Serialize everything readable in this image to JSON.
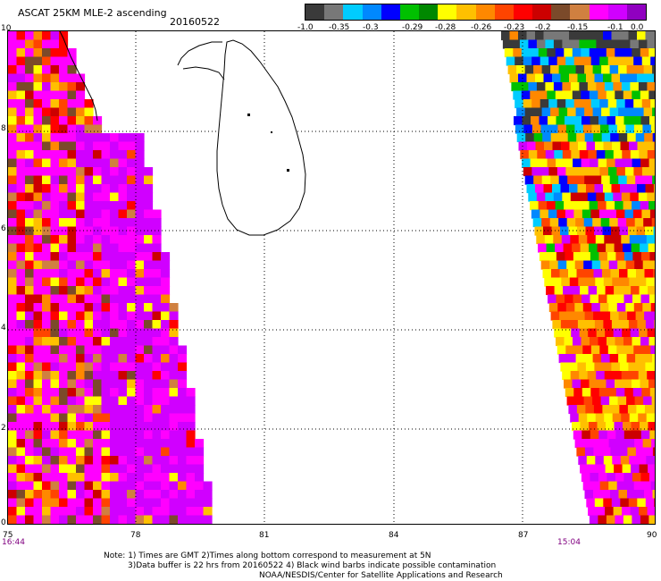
{
  "header": {
    "title": "ASCAT 25KM MLE-2 ascending",
    "date": "20160522"
  },
  "legend": {
    "colors": [
      "#3a3a3a",
      "#787878",
      "#00ccff",
      "#0088ff",
      "#0000ff",
      "#00c000",
      "#008800",
      "#ffff00",
      "#ffc000",
      "#ff8800",
      "#ff4400",
      "#ff0000",
      "#cc0000",
      "#7b4a2a",
      "#d08040",
      "#ff00ff",
      "#d000ff",
      "#9000c0"
    ],
    "labels": [
      "-1.0",
      "-0.35",
      "-0.3",
      "-0.29",
      "-0.28",
      "-0.26",
      "-0.23",
      "-0.2",
      "-0.15",
      "-0.1",
      "0.0"
    ]
  },
  "axes": {
    "longitudes": [
      "75",
      "78",
      "81",
      "84",
      "87",
      "90"
    ],
    "latitudes": [
      "10",
      "8",
      "6",
      "4",
      "2",
      "0"
    ]
  },
  "times": {
    "left": "16:44",
    "right": "15:04"
  },
  "notes": {
    "line1": "Note: 1) Times are GMT 2)Times along bottom correspond to measurement at 5N",
    "line2": "3)Data buffer is 22 hrs from 20160522 4) Black wind barbs indicate possible contamination",
    "line3": "NOAA/NESDIS/Center for Satellite Applications and Research"
  },
  "map": {
    "landmass": "Sri Lanka",
    "west_swath_palette": [
      "#ff00ff",
      "#d000ff",
      "#ff0000",
      "#ff4400",
      "#cc0000",
      "#7b4a2a",
      "#ff8800",
      "#ffc000",
      "#ffff00",
      "#d08040"
    ],
    "east_swath_palette_north": [
      "#00ccff",
      "#0088ff",
      "#0000ff",
      "#00c000",
      "#ffff00",
      "#ffc000",
      "#ff8800",
      "#3a3a3a"
    ],
    "east_swath_palette_south": [
      "#ff0000",
      "#ff4400",
      "#ffc000",
      "#ffff00",
      "#ff8800",
      "#d000ff",
      "#ff00ff",
      "#cc0000"
    ]
  }
}
